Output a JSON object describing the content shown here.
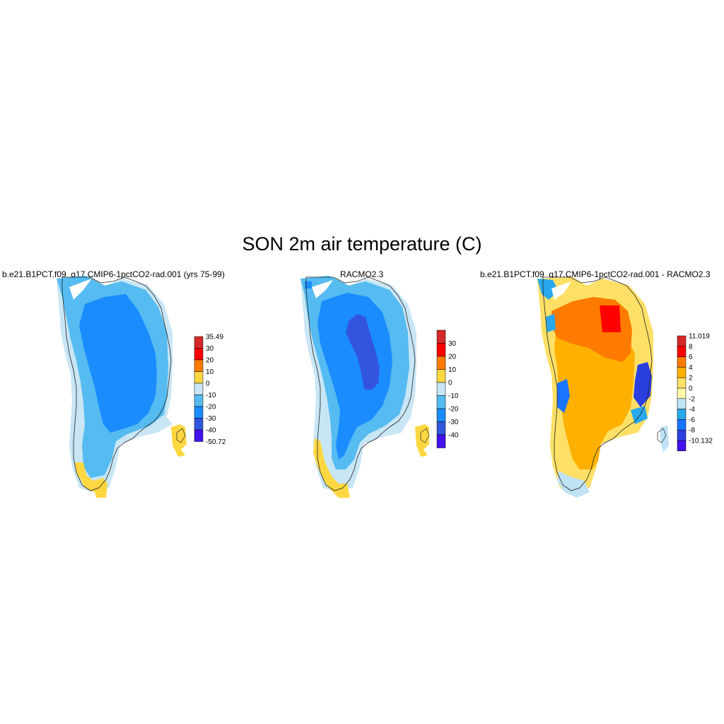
{
  "title": "SON 2m air temperature (C)",
  "panels": [
    {
      "id": "model",
      "title": "b.e21.B1PCT.f09_g17.CMIP6-1pctCO2-rad.001 (yrs 75-99)",
      "colorbar": {
        "labels": [
          "35.49",
          "30",
          "20",
          "10",
          "0",
          "-10",
          "-20",
          "-30",
          "-40",
          "-50.72"
        ],
        "colors": [
          "#d62828",
          "#ff0000",
          "#ff7b00",
          "#ffd740",
          "#c8e6f5",
          "#55bbf0",
          "#1a8cff",
          "#3355dd",
          "#4411ee"
        ]
      }
    },
    {
      "id": "racmo",
      "title": "RACMO2.3",
      "colorbar": {
        "labels": [
          "30",
          "20",
          "10",
          "0",
          "-10",
          "-20",
          "-30",
          "-40"
        ],
        "colors": [
          "#d62828",
          "#ff0000",
          "#ff7b00",
          "#ffd740",
          "#c8e6f5",
          "#55bbf0",
          "#1a8cff",
          "#3355dd",
          "#4411ee"
        ]
      }
    },
    {
      "id": "difference",
      "title": "b.e21.B1PCT.f09_g17.CMIP6-1pctCO2-rad.001 - RACMO2.3",
      "colorbar": {
        "labels": [
          "11.019",
          "8",
          "6",
          "4",
          "2",
          "0",
          "-2",
          "-4",
          "-6",
          "-8",
          "-10.132"
        ],
        "colors": [
          "#d62828",
          "#ff0000",
          "#ff7b00",
          "#ffb000",
          "#ffe066",
          "#fff7a8",
          "#bfe3f5",
          "#29a8ee",
          "#1a74ff",
          "#2b3fe0",
          "#4411ee"
        ]
      }
    }
  ]
}
